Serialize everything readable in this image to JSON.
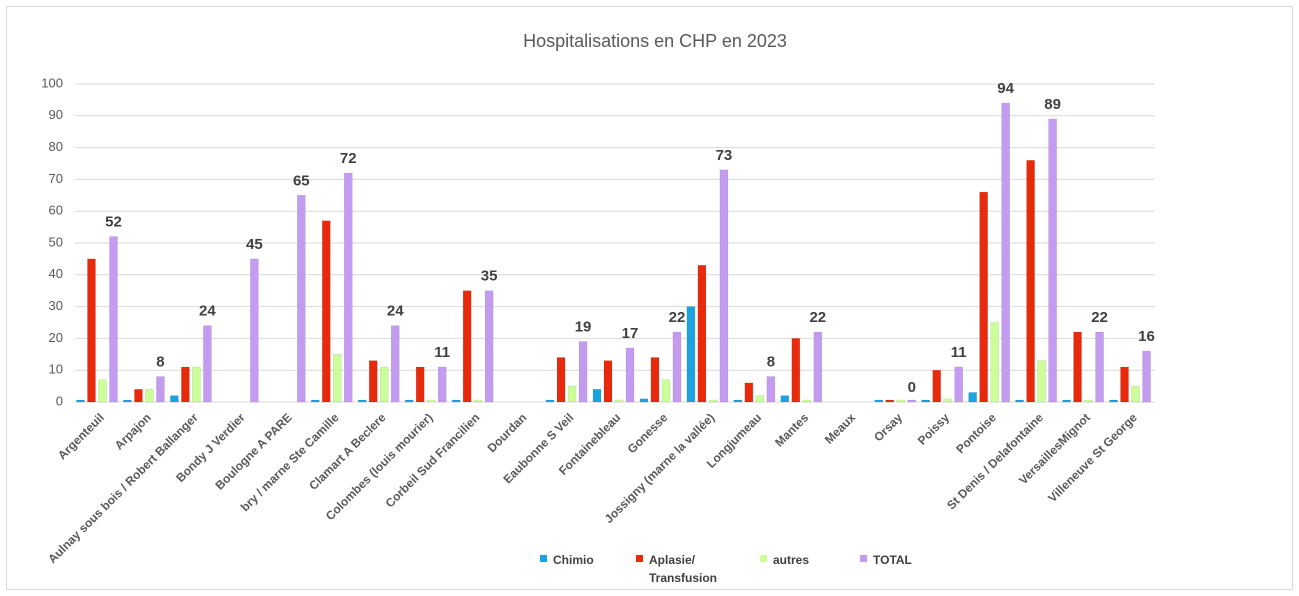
{
  "chart_data": {
    "type": "bar",
    "title": "Hospitalisations en CHP en 2023",
    "categories": [
      "Argenteuil",
      "Arpajon",
      "Aulnay sous bois / Robert Ballanger",
      "Bondy J Verdier",
      "Boulogne A PARE",
      "bry / marne Ste Camille",
      "Clamart A Beclere",
      "Colombes (louis mourier)",
      "Corbeil Sud Francilien",
      "Dourdan",
      "Eaubonne S Veil",
      "Fontainebleau",
      "Gonesse",
      "Jossigny (marne la vallée)",
      "Longjumeau",
      "Mantes",
      "Meaux",
      "Orsay",
      "Poissy",
      "Pontoise",
      "St Denis / Delafontaine",
      "VersaillesMignot",
      "Villeneuve St George"
    ],
    "series": [
      {
        "name": "Chimio",
        "color": "#1aa3e0",
        "values": [
          0,
          0,
          2,
          null,
          null,
          0,
          0,
          0,
          0,
          null,
          0,
          4,
          1,
          30,
          0,
          2,
          null,
          0,
          0,
          3,
          0,
          0,
          0
        ]
      },
      {
        "name": "Aplasie/ Transfusion",
        "color": "#e8290b",
        "values": [
          45,
          4,
          11,
          null,
          null,
          57,
          13,
          11,
          35,
          null,
          14,
          13,
          14,
          43,
          6,
          20,
          null,
          0,
          10,
          66,
          76,
          22,
          11
        ]
      },
      {
        "name": "autres",
        "color": "#ccff99",
        "values": [
          7,
          4,
          11,
          null,
          null,
          15,
          11,
          0,
          0,
          null,
          5,
          0,
          7,
          0,
          2,
          0,
          null,
          0,
          1,
          25,
          13,
          0,
          5
        ]
      },
      {
        "name": "TOTAL",
        "color": "#c39bf0",
        "values": [
          52,
          8,
          24,
          45,
          65,
          72,
          24,
          11,
          35,
          null,
          19,
          17,
          22,
          73,
          8,
          22,
          null,
          0,
          11,
          94,
          89,
          22,
          16
        ],
        "data_labels": true
      }
    ],
    "ylim": [
      0,
      100
    ],
    "yticks": [
      0,
      10,
      20,
      30,
      40,
      50,
      60,
      70,
      80,
      90,
      100
    ],
    "grid": true,
    "legend": "bottom"
  }
}
